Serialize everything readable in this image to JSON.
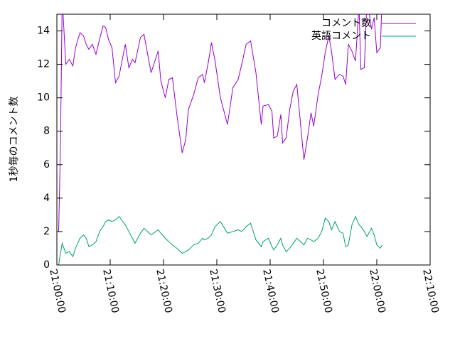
{
  "chart_data": {
    "type": "line",
    "y_label": "1秒毎のコメント数",
    "x": [
      "21:00:00",
      "21:00:20",
      "21:00:40",
      "21:01:00",
      "21:01:40",
      "21:02:20",
      "21:03:00",
      "21:03:30",
      "21:04:20",
      "21:05:00",
      "21:05:30",
      "21:06:00",
      "21:06:40",
      "21:07:20",
      "21:08:00",
      "21:08:40",
      "21:09:10",
      "21:09:40",
      "21:10:20",
      "21:11:00",
      "21:11:40",
      "21:12:50",
      "21:13:30",
      "21:14:10",
      "21:14:40",
      "21:15:40",
      "21:16:20",
      "21:17:40",
      "21:19:00",
      "21:19:30",
      "21:20:20",
      "21:21:00",
      "21:21:40",
      "21:22:30",
      "21:23:30",
      "21:24:10",
      "21:24:40",
      "21:25:40",
      "21:26:30",
      "21:27:20",
      "21:27:40",
      "21:28:20",
      "21:29:00",
      "21:29:40",
      "21:30:40",
      "21:32:00",
      "21:33:00",
      "21:34:00",
      "21:34:40",
      "21:35:30",
      "21:36:20",
      "21:37:20",
      "21:38:20",
      "21:38:40",
      "21:39:40",
      "21:40:20",
      "21:40:40",
      "21:41:20",
      "21:42:00",
      "21:42:20",
      "21:43:00",
      "21:43:40",
      "21:44:20",
      "21:45:00",
      "21:46:20",
      "21:47:00",
      "21:47:40",
      "21:48:10",
      "21:49:00",
      "21:49:40",
      "21:50:20",
      "21:51:00",
      "21:51:30",
      "21:52:10",
      "21:53:00",
      "21:53:40",
      "21:54:10",
      "21:54:40",
      "21:55:20",
      "21:56:00",
      "21:56:40",
      "21:57:00",
      "21:57:40",
      "21:58:10",
      "21:59:00",
      "21:59:30",
      "22:00:00",
      "22:00:40",
      "22:01:00"
    ],
    "series": [
      {
        "name": "コメント数",
        "color": "#9400d3",
        "values": [
          2.0,
          2.0,
          7.0,
          16,
          12.0,
          12.3,
          11.9,
          13.0,
          13.9,
          13.7,
          13.2,
          12.9,
          13.2,
          12.6,
          13.5,
          14.3,
          14.2,
          13.5,
          13.0,
          10.9,
          11.3,
          13.2,
          11.8,
          12.3,
          12.1,
          13.6,
          13.8,
          11.5,
          12.8,
          11.0,
          10.0,
          11.1,
          11.2,
          9.0,
          6.7,
          7.5,
          9.3,
          10.2,
          11.2,
          11.4,
          10.9,
          12.0,
          13.3,
          12.2,
          10.0,
          8.4,
          10.6,
          11.1,
          12.0,
          13.2,
          13.4,
          11.5,
          8.4,
          9.5,
          9.6,
          9.2,
          7.6,
          7.7,
          9.0,
          7.3,
          7.6,
          9.3,
          10.4,
          10.8,
          6.3,
          7.6,
          9.1,
          8.3,
          10.2,
          11.3,
          12.7,
          13.7,
          12.8,
          11.1,
          11.4,
          11.3,
          10.8,
          13.2,
          12.8,
          12.2,
          15.5,
          11.7,
          11.8,
          16,
          14.1,
          14.8,
          12.7,
          13.0,
          16
        ]
      },
      {
        "name": "英語コメント",
        "color": "#009e73",
        "values": [
          0,
          0,
          0.7,
          1.3,
          0.7,
          0.8,
          0.5,
          1.0,
          1.6,
          1.8,
          1.6,
          1.1,
          1.2,
          1.4,
          2.0,
          2.3,
          2.6,
          2.7,
          2.6,
          2.7,
          2.9,
          2.4,
          2.0,
          1.6,
          1.3,
          1.9,
          2.2,
          1.8,
          2.1,
          1.9,
          1.6,
          1.4,
          1.2,
          1.0,
          0.7,
          0.8,
          0.9,
          1.2,
          1.3,
          1.6,
          1.5,
          1.6,
          1.8,
          2.3,
          2.6,
          1.9,
          2.0,
          2.1,
          2.0,
          2.3,
          2.5,
          1.5,
          1.1,
          1.4,
          1.6,
          1.1,
          0.9,
          1.2,
          1.6,
          1.2,
          0.8,
          1.0,
          1.3,
          1.6,
          1.2,
          1.6,
          1.5,
          1.4,
          1.6,
          2.0,
          2.8,
          2.6,
          2.1,
          2.6,
          2.0,
          1.9,
          1.1,
          1.2,
          2.4,
          2.9,
          2.4,
          2.3,
          2.0,
          1.7,
          2.2,
          1.8,
          1.2,
          1.0,
          1.2
        ]
      }
    ],
    "xlim": [
      "21:00:00",
      "22:10:00"
    ],
    "xticks": [
      "21:00:00",
      "21:10:00",
      "21:20:00",
      "21:30:00",
      "21:40:00",
      "21:50:00",
      "22:00:00",
      "22:10:00"
    ],
    "ylim": [
      0,
      15
    ],
    "yticks": [
      0,
      2,
      4,
      6,
      8,
      10,
      12,
      14
    ],
    "legend": "upper right"
  }
}
